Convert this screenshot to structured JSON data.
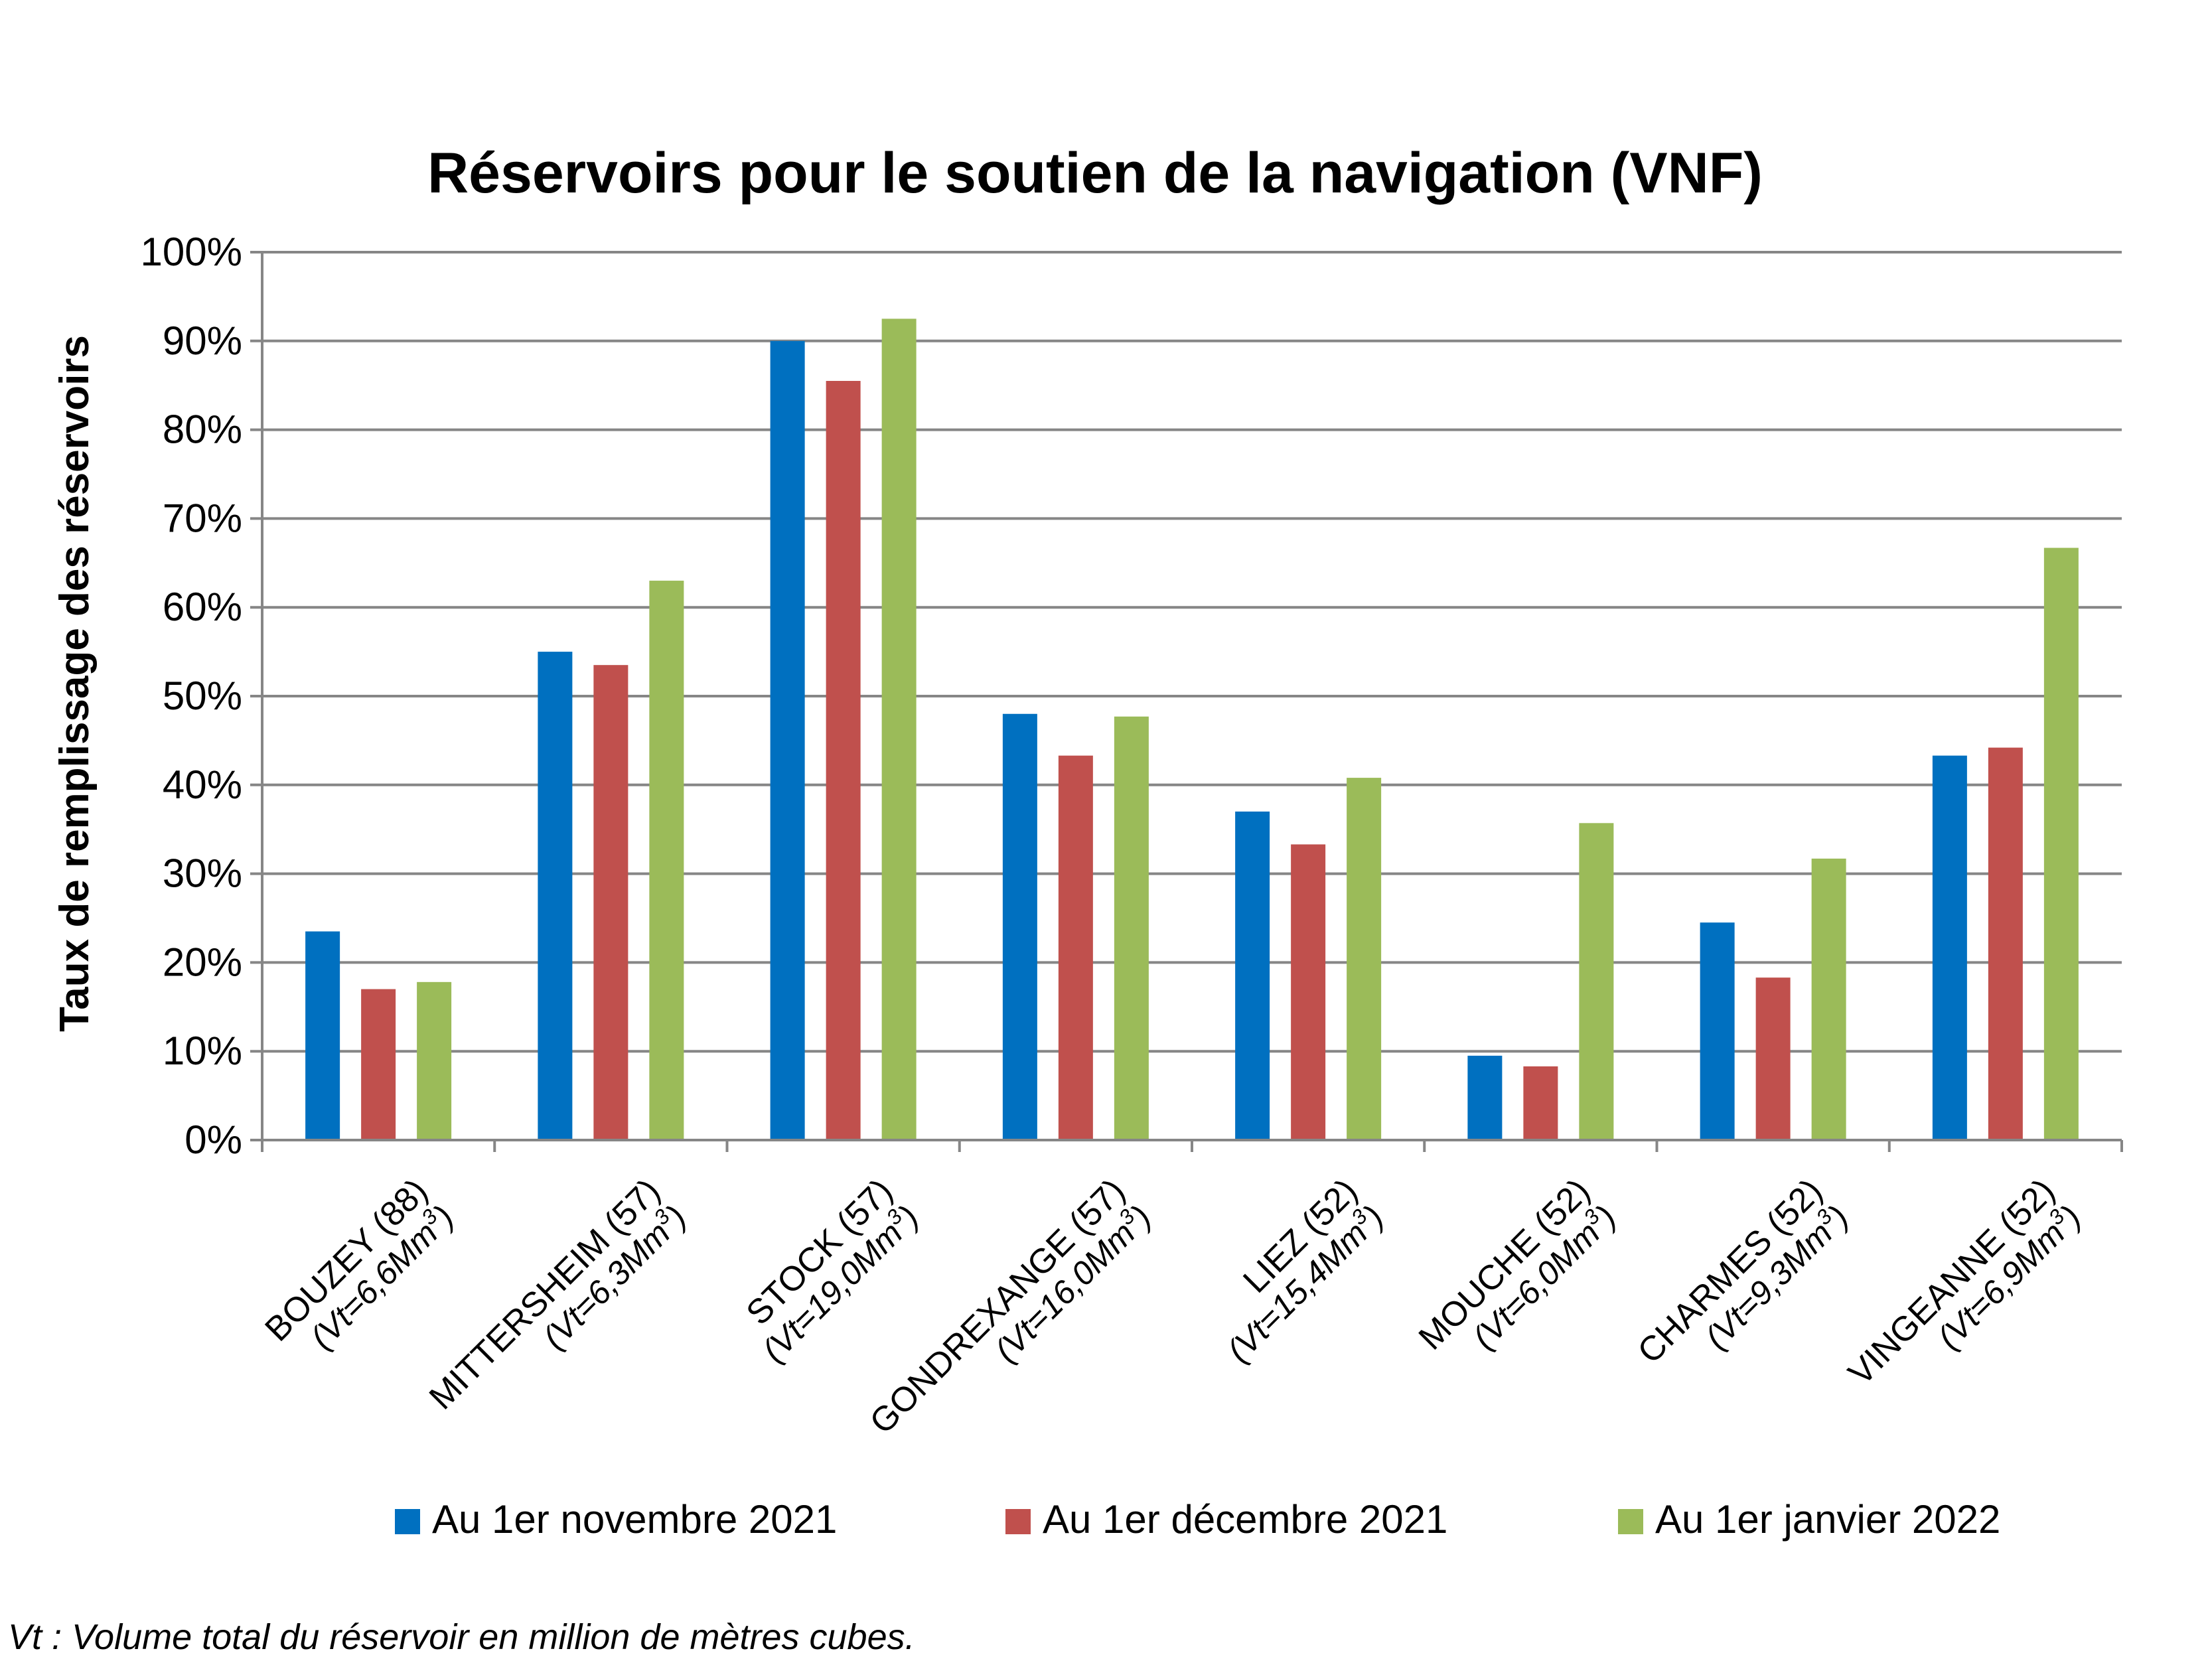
{
  "chart_data": {
    "type": "bar",
    "title": "Réservoirs pour le soutien de la navigation (VNF)",
    "ylabel": "Taux de remplissage des réservoirs",
    "xlabel": "",
    "ylim": [
      0,
      100
    ],
    "yticks": [
      "0%",
      "10%",
      "20%",
      "30%",
      "40%",
      "50%",
      "60%",
      "70%",
      "80%",
      "90%",
      "100%"
    ],
    "grid": true,
    "legend_position": "bottom",
    "categories": [
      {
        "name": "BOUZEY (88)",
        "vt_prefix": "(Vt=6,6Mm",
        "vt_sup": "3",
        "vt_suffix": ")"
      },
      {
        "name": "MITTERSHEIM (57)",
        "vt_prefix": "(Vt=6,3Mm",
        "vt_sup": "3",
        "vt_suffix": ")"
      },
      {
        "name": "STOCK (57)",
        "vt_prefix": "(Vt=19,0Mm",
        "vt_sup": "3",
        "vt_suffix": ")"
      },
      {
        "name": "GONDREXANGE (57)",
        "vt_prefix": "(Vt=16,0Mm",
        "vt_sup": "3",
        "vt_suffix": ")"
      },
      {
        "name": "LIEZ (52)",
        "vt_prefix": "(Vt=15,4Mm",
        "vt_sup": "3",
        "vt_suffix": ")"
      },
      {
        "name": "MOUCHE (52)",
        "vt_prefix": "(Vt=6,0Mm",
        "vt_sup": "3",
        "vt_suffix": ")"
      },
      {
        "name": "CHARMES (52)",
        "vt_prefix": "(Vt=9,3Mm",
        "vt_sup": "3",
        "vt_suffix": ")"
      },
      {
        "name": "VINGEANNE (52)",
        "vt_prefix": "(Vt=6,9Mm",
        "vt_sup": "3",
        "vt_suffix": ")"
      }
    ],
    "series": [
      {
        "name": "Au 1er novembre 2021",
        "color": "#0070C0",
        "values": [
          23.5,
          55,
          90,
          48,
          37,
          9.5,
          24.5,
          43.3
        ]
      },
      {
        "name": "Au 1er décembre 2021",
        "color": "#C0504D",
        "values": [
          17,
          53.5,
          85.5,
          43.3,
          33.3,
          8.3,
          18.3,
          44.2
        ]
      },
      {
        "name": "Au 1er janvier 2022",
        "color": "#9BBB59",
        "values": [
          17.8,
          63,
          92.5,
          47.7,
          40.8,
          35.7,
          31.7,
          66.7
        ]
      }
    ],
    "footnote": "Vt : Volume total du réservoir en million de mètres cubes."
  },
  "colors": {
    "gridline": "#868686",
    "axis": "#868686"
  }
}
